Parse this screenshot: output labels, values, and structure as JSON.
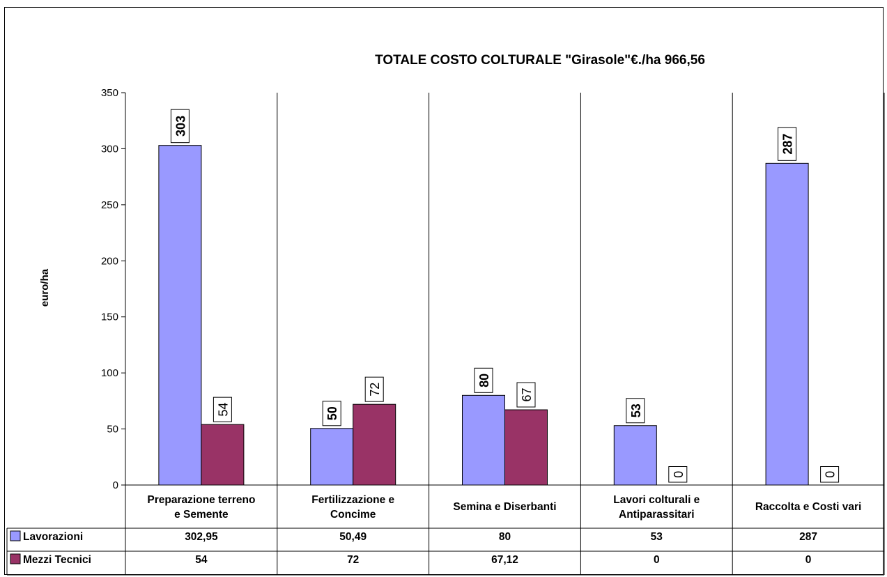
{
  "chart_data": {
    "type": "bar",
    "title": "TOTALE COSTO COLTURALE \"Girasole\"€./ha 966,56",
    "ylabel": "euro/ha",
    "xlabel": "",
    "ylim": [
      0,
      350
    ],
    "yticks": [
      0,
      50,
      100,
      150,
      200,
      250,
      300,
      350
    ],
    "grid": "vertical category dividers",
    "legend": "data-table-left",
    "categories": [
      [
        "Preparazione terreno",
        "e Semente"
      ],
      [
        "Fertilizzazione e",
        "Concime"
      ],
      [
        "Semina e Diserbanti"
      ],
      [
        "Lavori colturali e",
        "Antiparassitari"
      ],
      [
        "Raccolta e Costi vari"
      ]
    ],
    "series": [
      {
        "name": "Lavorazioni",
        "color": "#9999ff",
        "values": [
          302.95,
          50.49,
          80,
          53,
          287
        ],
        "data_labels": [
          "303",
          "50",
          "80",
          "53",
          "287"
        ],
        "table_values": [
          "302,95",
          "50,49",
          "80",
          "53",
          "287"
        ],
        "label_style": "bold"
      },
      {
        "name": "Mezzi Tecnici",
        "color": "#993366",
        "values": [
          54,
          72,
          67.12,
          0,
          0
        ],
        "data_labels": [
          "54",
          "72",
          "67",
          "0",
          "0"
        ],
        "table_values": [
          "54",
          "72",
          "67,12",
          "0",
          "0"
        ],
        "label_style": "normal"
      }
    ]
  }
}
